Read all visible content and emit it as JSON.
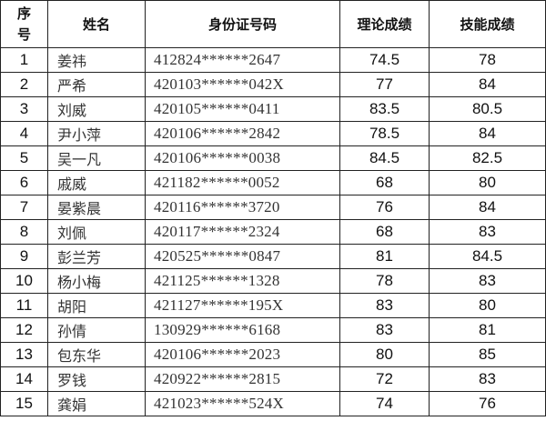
{
  "headers": {
    "seq_1": "序",
    "seq_2": "号",
    "name": "姓名",
    "id": "身份证号码",
    "theory": "理论成绩",
    "skill": "技能成绩"
  },
  "rows": [
    {
      "seq": "1",
      "name": "姜祎",
      "id": "412824******2647",
      "theory": "74.5",
      "skill": "78"
    },
    {
      "seq": "2",
      "name": "严希",
      "id": "420103******042X",
      "theory": "77",
      "skill": "84"
    },
    {
      "seq": "3",
      "name": "刘威",
      "id": "420105******0411",
      "theory": "83.5",
      "skill": "80.5"
    },
    {
      "seq": "4",
      "name": "尹小萍",
      "id": "420106******2842",
      "theory": "78.5",
      "skill": "84"
    },
    {
      "seq": "5",
      "name": "吴一凡",
      "id": "420106******0038",
      "theory": "84.5",
      "skill": "82.5"
    },
    {
      "seq": "6",
      "name": "戚威",
      "id": "421182******0052",
      "theory": "68",
      "skill": "80"
    },
    {
      "seq": "7",
      "name": "晏紫晨",
      "id": "420116******3720",
      "theory": "76",
      "skill": "84"
    },
    {
      "seq": "8",
      "name": "刘佩",
      "id": "420117******2324",
      "theory": "68",
      "skill": "83"
    },
    {
      "seq": "9",
      "name": "彭兰芳",
      "id": "420525******0847",
      "theory": "81",
      "skill": "84.5"
    },
    {
      "seq": "10",
      "name": "杨小梅",
      "id": "421125******1328",
      "theory": "78",
      "skill": "83"
    },
    {
      "seq": "11",
      "name": "胡阳",
      "id": "421127******195X",
      "theory": "83",
      "skill": "80"
    },
    {
      "seq": "12",
      "name": "孙倩",
      "id": "130929******6168",
      "theory": "83",
      "skill": "81"
    },
    {
      "seq": "13",
      "name": "包东华",
      "id": "420106******2023",
      "theory": "80",
      "skill": "85"
    },
    {
      "seq": "14",
      "name": "罗钱",
      "id": "420922******2815",
      "theory": "72",
      "skill": "83"
    },
    {
      "seq": "15",
      "name": "龚娟",
      "id": "421023******524X",
      "theory": "74",
      "skill": "76"
    }
  ]
}
